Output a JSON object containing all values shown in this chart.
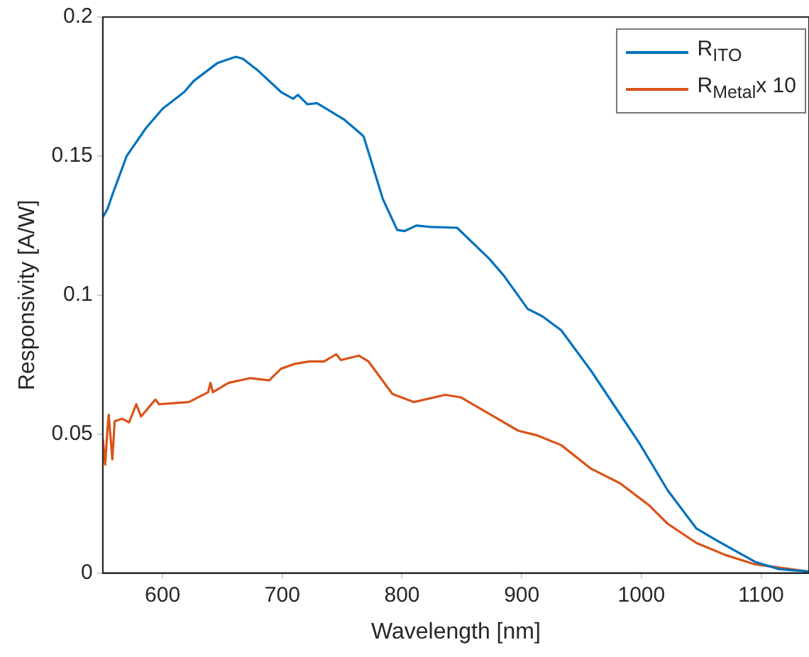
{
  "chart_data": {
    "type": "line",
    "xlabel": "Wavelength [nm]",
    "ylabel": "Responsivity [A/W]",
    "xlim": [
      550,
      1140
    ],
    "xticks": [
      600,
      700,
      800,
      900,
      1000,
      1100
    ],
    "ylim": [
      0,
      0.2
    ],
    "yticks": [
      0,
      0.05,
      0.1,
      0.15,
      0.2
    ],
    "grid": false,
    "legend": "top right",
    "marker": "none",
    "line_style": "solid",
    "series": [
      {
        "name": "R$_{ITO}$",
        "color": "#0072bd",
        "x": [
          550,
          554,
          558,
          570,
          586,
          600,
          618,
          626,
          646,
          661,
          667,
          679,
          699,
          709,
          713,
          721,
          729,
          752,
          764,
          768,
          784,
          796,
          802,
          812,
          824,
          846,
          873,
          885,
          905,
          917,
          933,
          958,
          982,
          998,
          1022,
          1046,
          1063,
          1095,
          1115,
          1140
        ],
        "values": [
          0.128,
          0.131,
          0.136,
          0.15,
          0.16,
          0.167,
          0.173,
          0.177,
          0.1835,
          0.1857,
          0.185,
          0.181,
          0.173,
          0.1706,
          0.172,
          0.1686,
          0.169,
          0.163,
          0.1586,
          0.157,
          0.1345,
          0.1234,
          0.123,
          0.125,
          0.1245,
          0.1242,
          0.113,
          0.107,
          0.095,
          0.0924,
          0.0873,
          0.0727,
          0.0572,
          0.0469,
          0.0297,
          0.016,
          0.0117,
          0.004,
          0.0014,
          0.0005
        ]
      },
      {
        "name": "R$_{Metal}$x 10",
        "color": "#d95319",
        "x": [
          550,
          552,
          554,
          555,
          558,
          560,
          566,
          572,
          578,
          582,
          594,
          597,
          622,
          638,
          640,
          642,
          655,
          673,
          689,
          699,
          711,
          723,
          735,
          745,
          749,
          764,
          772,
          792,
          810,
          836,
          849,
          873,
          897,
          913,
          933,
          958,
          982,
          1006,
          1022,
          1046,
          1070,
          1095,
          1140
        ],
        "values": [
          0.0486,
          0.039,
          0.052,
          0.0569,
          0.0409,
          0.0546,
          0.0555,
          0.0542,
          0.0607,
          0.0563,
          0.0624,
          0.0607,
          0.0615,
          0.065,
          0.0684,
          0.065,
          0.0684,
          0.0701,
          0.0693,
          0.0735,
          0.0753,
          0.0761,
          0.0761,
          0.0787,
          0.0766,
          0.0782,
          0.0761,
          0.0644,
          0.0615,
          0.0641,
          0.0632,
          0.0572,
          0.0512,
          0.0495,
          0.046,
          0.0375,
          0.0323,
          0.0245,
          0.0177,
          0.0108,
          0.0065,
          0.0031,
          0.0005
        ]
      }
    ]
  }
}
